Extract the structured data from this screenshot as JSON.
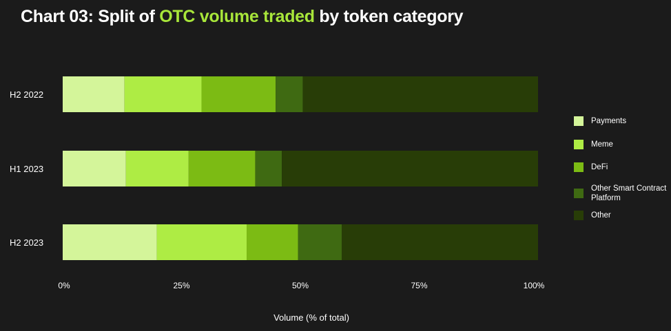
{
  "title": {
    "prefix": "Chart 03: Split of ",
    "highlight": "OTC volume traded",
    "suffix": " by token category"
  },
  "colors": {
    "background": "#1b1b1b",
    "highlight": "#a8e63a"
  },
  "chart_data": {
    "type": "bar",
    "orientation": "horizontal",
    "stacked": true,
    "categories": [
      "H2 2022",
      "H1 2023",
      "H2 2023"
    ],
    "series": [
      {
        "name": "Payments",
        "color": "#d4f59a",
        "values": [
          13,
          13.3,
          19.8
        ]
      },
      {
        "name": "Meme",
        "color": "#aeec44",
        "values": [
          16.2,
          13.2,
          18.9
        ]
      },
      {
        "name": "DeFi",
        "color": "#7cbb14",
        "values": [
          15.6,
          14,
          10.8
        ]
      },
      {
        "name": "Other Smart Contract Platform",
        "color": "#3f6a12",
        "values": [
          5.7,
          5.6,
          9.2
        ]
      },
      {
        "name": "Other",
        "color": "#283d07",
        "values": [
          49.5,
          53.9,
          41.3
        ]
      }
    ],
    "xlabel": "Volume (% of total)",
    "xlim": [
      0,
      100
    ],
    "xticks": [
      "0%",
      "25%",
      "50%",
      "75%",
      "100%"
    ],
    "grid": false,
    "legend_position": "right"
  }
}
